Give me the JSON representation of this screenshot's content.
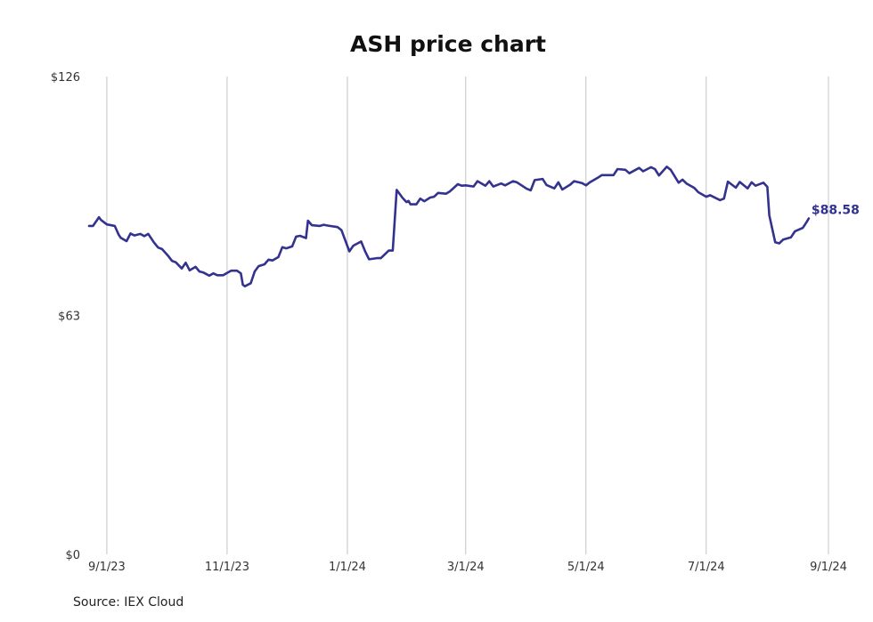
{
  "chart_data": {
    "type": "line",
    "title": "ASH price chart",
    "source": "Source: IEX Cloud",
    "line_color": "#33338f",
    "x_tick_labels": [
      "9/1/23",
      "11/1/23",
      "1/1/24",
      "3/1/24",
      "5/1/24",
      "7/1/24",
      "9/1/24"
    ],
    "x_ticks": [
      "2023-09-01",
      "2023-11-01",
      "2024-01-01",
      "2024-03-01",
      "2024-05-01",
      "2024-07-01",
      "2024-09-01"
    ],
    "xlim": [
      "2023-08-23",
      "2024-09-01"
    ],
    "y_tick_labels": [
      "$0",
      "$63",
      "$126"
    ],
    "y_ticks": [
      0,
      63,
      126
    ],
    "ylim": [
      0,
      126
    ],
    "grid": {
      "vertical": true,
      "horizontal": false
    },
    "last_value_label": "$88.58",
    "series": [
      {
        "x": [
          "2023-08-23",
          "2023-08-25",
          "2023-08-28",
          "2023-08-29",
          "2023-08-30",
          "2023-09-01",
          "2023-09-05",
          "2023-09-07",
          "2023-09-08",
          "2023-09-11",
          "2023-09-13",
          "2023-09-15",
          "2023-09-18",
          "2023-09-20",
          "2023-09-22",
          "2023-09-25",
          "2023-09-27",
          "2023-09-29",
          "2023-10-02",
          "2023-10-04",
          "2023-10-06",
          "2023-10-09",
          "2023-10-11",
          "2023-10-13",
          "2023-10-16",
          "2023-10-18",
          "2023-10-20",
          "2023-10-23",
          "2023-10-25",
          "2023-10-27",
          "2023-10-30",
          "2023-11-01",
          "2023-11-03",
          "2023-11-06",
          "2023-11-08",
          "2023-11-09",
          "2023-11-10",
          "2023-11-13",
          "2023-11-15",
          "2023-11-17",
          "2023-11-20",
          "2023-11-22",
          "2023-11-24",
          "2023-11-27",
          "2023-11-29",
          "2023-12-01",
          "2023-12-04",
          "2023-12-06",
          "2023-12-08",
          "2023-12-11",
          "2023-12-12",
          "2023-12-14",
          "2023-12-18",
          "2023-12-20",
          "2023-12-22",
          "2023-12-27",
          "2023-12-29",
          "2024-01-02",
          "2024-01-04",
          "2024-01-08",
          "2024-01-10",
          "2024-01-12",
          "2024-01-16",
          "2024-01-18",
          "2024-01-22",
          "2024-01-24",
          "2024-01-26",
          "2024-01-29",
          "2024-01-31",
          "2024-02-01",
          "2024-02-02",
          "2024-02-05",
          "2024-02-07",
          "2024-02-09",
          "2024-02-12",
          "2024-02-14",
          "2024-02-16",
          "2024-02-20",
          "2024-02-22",
          "2024-02-26",
          "2024-02-28",
          "2024-03-01",
          "2024-03-05",
          "2024-03-07",
          "2024-03-11",
          "2024-03-13",
          "2024-03-15",
          "2024-03-19",
          "2024-03-21",
          "2024-03-25",
          "2024-03-27",
          "2024-04-01",
          "2024-04-03",
          "2024-04-05",
          "2024-04-09",
          "2024-04-11",
          "2024-04-15",
          "2024-04-17",
          "2024-04-19",
          "2024-04-23",
          "2024-04-25",
          "2024-04-29",
          "2024-05-01",
          "2024-05-03",
          "2024-05-07",
          "2024-05-09",
          "2024-05-13",
          "2024-05-15",
          "2024-05-17",
          "2024-05-21",
          "2024-05-23",
          "2024-05-28",
          "2024-05-30",
          "2024-06-03",
          "2024-06-05",
          "2024-06-07",
          "2024-06-11",
          "2024-06-13",
          "2024-06-17",
          "2024-06-19",
          "2024-06-21",
          "2024-06-25",
          "2024-06-27",
          "2024-07-01",
          "2024-07-03",
          "2024-07-08",
          "2024-07-10",
          "2024-07-12",
          "2024-07-16",
          "2024-07-18",
          "2024-07-22",
          "2024-07-24",
          "2024-07-26",
          "2024-07-30",
          "2024-08-01",
          "2024-08-02",
          "2024-08-05",
          "2024-08-07",
          "2024-08-09",
          "2024-08-13",
          "2024-08-15",
          "2024-08-19",
          "2024-08-21",
          "2024-08-22"
        ],
        "values": [
          86.6,
          86.6,
          88.9,
          88.2,
          87.8,
          87.0,
          86.6,
          84.3,
          83.5,
          82.6,
          84.6,
          84.1,
          84.5,
          83.9,
          84.5,
          82.2,
          80.9,
          80.5,
          78.8,
          77.4,
          77.0,
          75.4,
          76.9,
          74.9,
          75.8,
          74.6,
          74.3,
          73.5,
          74.1,
          73.6,
          73.6,
          74.2,
          74.8,
          74.8,
          74.1,
          71.1,
          70.7,
          71.5,
          74.6,
          76.0,
          76.5,
          77.7,
          77.5,
          78.4,
          81.0,
          80.7,
          81.2,
          83.8,
          84.0,
          83.4,
          88.0,
          86.8,
          86.6,
          86.9,
          86.7,
          86.3,
          85.5,
          79.9,
          81.4,
          82.5,
          79.9,
          77.8,
          78.1,
          78.1,
          80.1,
          80.1,
          96.1,
          94.0,
          92.9,
          93.2,
          92.3,
          92.3,
          93.8,
          93.1,
          94.1,
          94.3,
          95.3,
          95.1,
          95.7,
          97.6,
          97.2,
          97.3,
          97.0,
          98.4,
          97.2,
          98.4,
          97.0,
          97.8,
          97.3,
          98.4,
          98.1,
          96.4,
          96.0,
          98.7,
          99.0,
          97.4,
          96.5,
          98.1,
          96.2,
          97.5,
          98.4,
          97.9,
          97.3,
          98.1,
          99.3,
          100.0,
          100.0,
          100.0,
          101.6,
          101.4,
          100.5,
          101.9,
          101.0,
          102.1,
          101.6,
          99.9,
          102.2,
          101.4,
          98.0,
          98.8,
          97.8,
          96.6,
          95.5,
          94.3,
          94.7,
          93.4,
          93.8,
          98.3,
          96.7,
          98.2,
          96.5,
          98.1,
          97.2,
          98.0,
          96.9,
          89.4,
          82.3,
          82.0,
          83.0,
          83.6,
          85.2,
          86.1,
          87.7,
          88.58
        ]
      }
    ]
  }
}
